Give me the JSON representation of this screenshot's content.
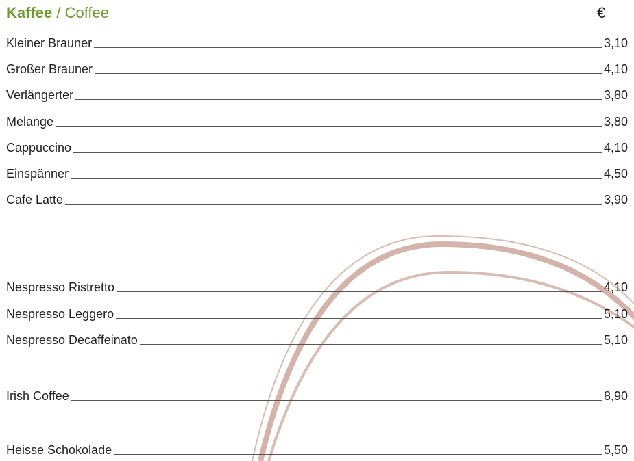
{
  "header": {
    "title_de": "Kaffee",
    "title_sep": " / ",
    "title_en": "Coffee",
    "currency": "€",
    "accent_color": "#6e9a2f"
  },
  "decoration": {
    "name": "swirl-arcs",
    "color": "#d9bdb5"
  },
  "groups": [
    {
      "items": [
        {
          "name": "Kleiner Brauner",
          "price": "3,10"
        },
        {
          "name": "Großer Brauner",
          "price": "4,10"
        },
        {
          "name": "Verlängerter",
          "price": "3,80"
        },
        {
          "name": "Melange",
          "price": "3,80"
        },
        {
          "name": "Cappuccino",
          "price": "4,10"
        },
        {
          "name": "Einspänner",
          "price": "4,50"
        },
        {
          "name": "Cafe Latte",
          "price": "3,90"
        }
      ]
    },
    {
      "items": [
        {
          "name": "Nespresso Ristretto",
          "price": "4,10"
        },
        {
          "name": "Nespresso Leggero",
          "price": "5,10"
        },
        {
          "name": "Nespresso Decaffeinato",
          "price": "5,10"
        }
      ]
    },
    {
      "items": [
        {
          "name": "Irish Coffee",
          "price": "8,90"
        }
      ]
    },
    {
      "items": [
        {
          "name": "Heisse Schokolade",
          "price": "5,50"
        }
      ]
    }
  ]
}
